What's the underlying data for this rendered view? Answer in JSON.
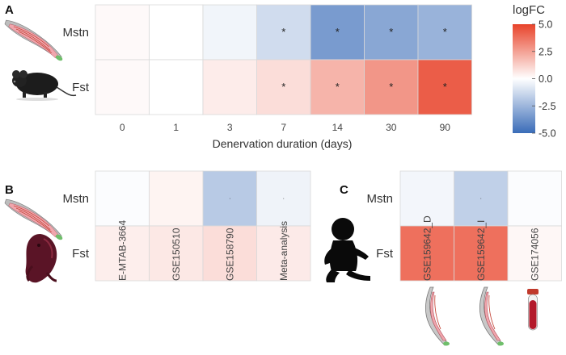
{
  "colors": {
    "low": "#3a6cb8",
    "mid": "#ffffff",
    "high": "#e8432a",
    "grid": "#d9d9d9"
  },
  "legend": {
    "title": "logFC",
    "ticks": [
      "5.0",
      "2.5",
      "0.0",
      "-2.5",
      "-5.0"
    ],
    "range": [
      -5,
      5
    ]
  },
  "icons": [
    "muscle-icon",
    "mouse-icon",
    "neonatal-mouse-icon",
    "infant-silhouette-icon",
    "blood-tube-icon"
  ],
  "chart_data": [
    {
      "panel": "A",
      "type": "heatmap",
      "title": "",
      "xlabel": "Denervation duration (days)",
      "ylabel": "",
      "x": [
        "0",
        "1",
        "3",
        "7",
        "14",
        "30",
        "90"
      ],
      "y": [
        "Mstn",
        "Fst"
      ],
      "values": [
        [
          0.15,
          0.0,
          -0.35,
          -1.2,
          -3.4,
          -3.0,
          -2.6
        ],
        [
          0.15,
          0.0,
          0.5,
          0.9,
          2.0,
          2.8,
          4.3
        ]
      ],
      "significant": [
        [
          false,
          false,
          false,
          true,
          true,
          true,
          true
        ],
        [
          false,
          false,
          false,
          true,
          true,
          true,
          true
        ]
      ],
      "marker": "*",
      "zlim": [
        -5,
        5
      ]
    },
    {
      "panel": "B",
      "type": "heatmap",
      "title": "",
      "xlabel": "",
      "ylabel": "",
      "x": [
        "E-MTAB-3664",
        "GSE150510",
        "GSE158790",
        "Meta-analysis"
      ],
      "y": [
        "Mstn",
        "Fst"
      ],
      "values": [
        [
          -0.1,
          0.3,
          -1.8,
          -0.4
        ],
        [
          0.45,
          0.6,
          0.9,
          0.55
        ]
      ],
      "significant": [
        [
          false,
          false,
          true,
          true
        ],
        [
          true,
          true,
          true,
          true
        ]
      ],
      "marker": "·",
      "zlim": [
        -5,
        5
      ]
    },
    {
      "panel": "C",
      "type": "heatmap",
      "title": "",
      "xlabel": "",
      "ylabel": "",
      "x": [
        "GSE159642_D",
        "GSE159642_I",
        "GSE174056"
      ],
      "y": [
        "Mstn",
        "Fst"
      ],
      "values": [
        [
          -0.3,
          -1.6,
          -0.1
        ],
        [
          3.8,
          3.8,
          0.2
        ]
      ],
      "significant": [
        [
          false,
          true,
          false
        ],
        [
          true,
          true,
          false
        ]
      ],
      "marker": "·",
      "zlim": [
        -5,
        5
      ]
    }
  ]
}
